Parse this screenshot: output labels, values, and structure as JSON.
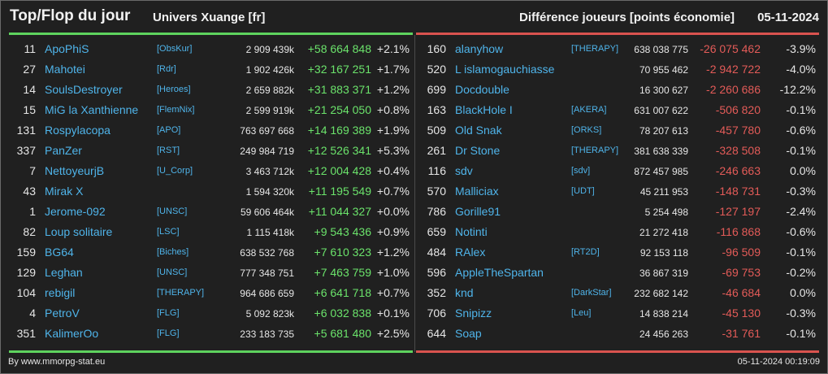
{
  "header": {
    "title": "Top/Flop du jour",
    "universe": "Univers Xuange [fr]",
    "difference": "Différence joueurs [points économie]",
    "date": "05-11-2024"
  },
  "colors": {
    "background": "#202020",
    "positive": "#6be36b",
    "negative": "#e35b58",
    "link": "#4fb4ea",
    "top_line": "#5ed35e",
    "flop_line": "#d9534f"
  },
  "top": [
    {
      "rank": "11",
      "name": "ApoPhiS",
      "ally": "[ObsKur]",
      "points": "2 909 439k",
      "delta": "+58 664 848",
      "pct": "+2.1%"
    },
    {
      "rank": "27",
      "name": "Mahotei",
      "ally": "[Rdr]",
      "points": "1 902 426k",
      "delta": "+32 167 251",
      "pct": "+1.7%"
    },
    {
      "rank": "14",
      "name": "SoulsDestroyer",
      "ally": "[Heroes]",
      "points": "2 659 882k",
      "delta": "+31 883 371",
      "pct": "+1.2%"
    },
    {
      "rank": "15",
      "name": "MiG la Xanthienne",
      "ally": "[FlemNix]",
      "points": "2 599 919k",
      "delta": "+21 254 050",
      "pct": "+0.8%"
    },
    {
      "rank": "131",
      "name": "Rospylacopa",
      "ally": "[APO]",
      "points": "763 697 668",
      "delta": "+14 169 389",
      "pct": "+1.9%"
    },
    {
      "rank": "337",
      "name": "PanZer",
      "ally": "[RST]",
      "points": "249 984 719",
      "delta": "+12 526 341",
      "pct": "+5.3%"
    },
    {
      "rank": "7",
      "name": "NettoyeurjB",
      "ally": "[U_Corp]",
      "points": "3 463 712k",
      "delta": "+12 004 428",
      "pct": "+0.4%"
    },
    {
      "rank": "43",
      "name": "Mirak X",
      "ally": "",
      "points": "1 594 320k",
      "delta": "+11 195 549",
      "pct": "+0.7%"
    },
    {
      "rank": "1",
      "name": "Jerome-092",
      "ally": "[UNSC]",
      "points": "59 606 464k",
      "delta": "+11 044 327",
      "pct": "+0.0%"
    },
    {
      "rank": "82",
      "name": "Loup solitaire",
      "ally": "[LSC]",
      "points": "1 115 418k",
      "delta": "+9 543 436",
      "pct": "+0.9%"
    },
    {
      "rank": "159",
      "name": "BG64",
      "ally": "[Biches]",
      "points": "638 532 768",
      "delta": "+7 610 323",
      "pct": "+1.2%"
    },
    {
      "rank": "129",
      "name": "Leghan",
      "ally": "[UNSC]",
      "points": "777 348 751",
      "delta": "+7 463 759",
      "pct": "+1.0%"
    },
    {
      "rank": "104",
      "name": "rebigil",
      "ally": "[THERAPY]",
      "points": "964 686 659",
      "delta": "+6 641 718",
      "pct": "+0.7%"
    },
    {
      "rank": "4",
      "name": "PetroV",
      "ally": "[FLG]",
      "points": "5 092 823k",
      "delta": "+6 032 838",
      "pct": "+0.1%"
    },
    {
      "rank": "351",
      "name": "KalimerOo",
      "ally": "[FLG]",
      "points": "233 183 735",
      "delta": "+5 681 480",
      "pct": "+2.5%"
    }
  ],
  "flop": [
    {
      "rank": "160",
      "name": "alanyhow",
      "ally": "[THERAPY]",
      "points": "638 038 775",
      "delta": "-26 075 462",
      "pct": "-3.9%"
    },
    {
      "rank": "520",
      "name": "L islamogauchiasse",
      "ally": "",
      "points": "70 955 462",
      "delta": "-2 942 722",
      "pct": "-4.0%"
    },
    {
      "rank": "699",
      "name": "Docdouble",
      "ally": "",
      "points": "16 300 627",
      "delta": "-2 260 686",
      "pct": "-12.2%"
    },
    {
      "rank": "163",
      "name": "BlackHole I",
      "ally": "[AKERA]",
      "points": "631 007 622",
      "delta": "-506 820",
      "pct": "-0.1%"
    },
    {
      "rank": "509",
      "name": "Old Snak",
      "ally": "[ORKS]",
      "points": "78 207 613",
      "delta": "-457 780",
      "pct": "-0.6%"
    },
    {
      "rank": "261",
      "name": "Dr Stone",
      "ally": "[THERAPY]",
      "points": "381 638 339",
      "delta": "-328 508",
      "pct": "-0.1%"
    },
    {
      "rank": "116",
      "name": "sdv",
      "ally": "[sdv]",
      "points": "872 457 985",
      "delta": "-246 663",
      "pct": "0.0%"
    },
    {
      "rank": "570",
      "name": "Malliciax",
      "ally": "[UDT]",
      "points": "45 211 953",
      "delta": "-148 731",
      "pct": "-0.3%"
    },
    {
      "rank": "786",
      "name": "Gorille91",
      "ally": "",
      "points": "5 254 498",
      "delta": "-127 197",
      "pct": "-2.4%"
    },
    {
      "rank": "659",
      "name": "Notinti",
      "ally": "",
      "points": "21 272 418",
      "delta": "-116 868",
      "pct": "-0.6%"
    },
    {
      "rank": "484",
      "name": "RAlex",
      "ally": "[RT2D]",
      "points": "92 153 118",
      "delta": "-96 509",
      "pct": "-0.1%"
    },
    {
      "rank": "596",
      "name": "AppleTheSpartan",
      "ally": "",
      "points": "36 867 319",
      "delta": "-69 753",
      "pct": "-0.2%"
    },
    {
      "rank": "352",
      "name": "knd",
      "ally": "[DarkStar]",
      "points": "232 682 142",
      "delta": "-46 684",
      "pct": "0.0%"
    },
    {
      "rank": "706",
      "name": "Snipizz",
      "ally": "[Leu]",
      "points": "14 838 214",
      "delta": "-45 130",
      "pct": "-0.3%"
    },
    {
      "rank": "644",
      "name": "Soap",
      "ally": "",
      "points": "24 456 263",
      "delta": "-31 761",
      "pct": "-0.1%"
    }
  ],
  "footer": {
    "source": "By www.mmorpg-stat.eu",
    "timestamp": "05-11-2024 00:19:09"
  }
}
